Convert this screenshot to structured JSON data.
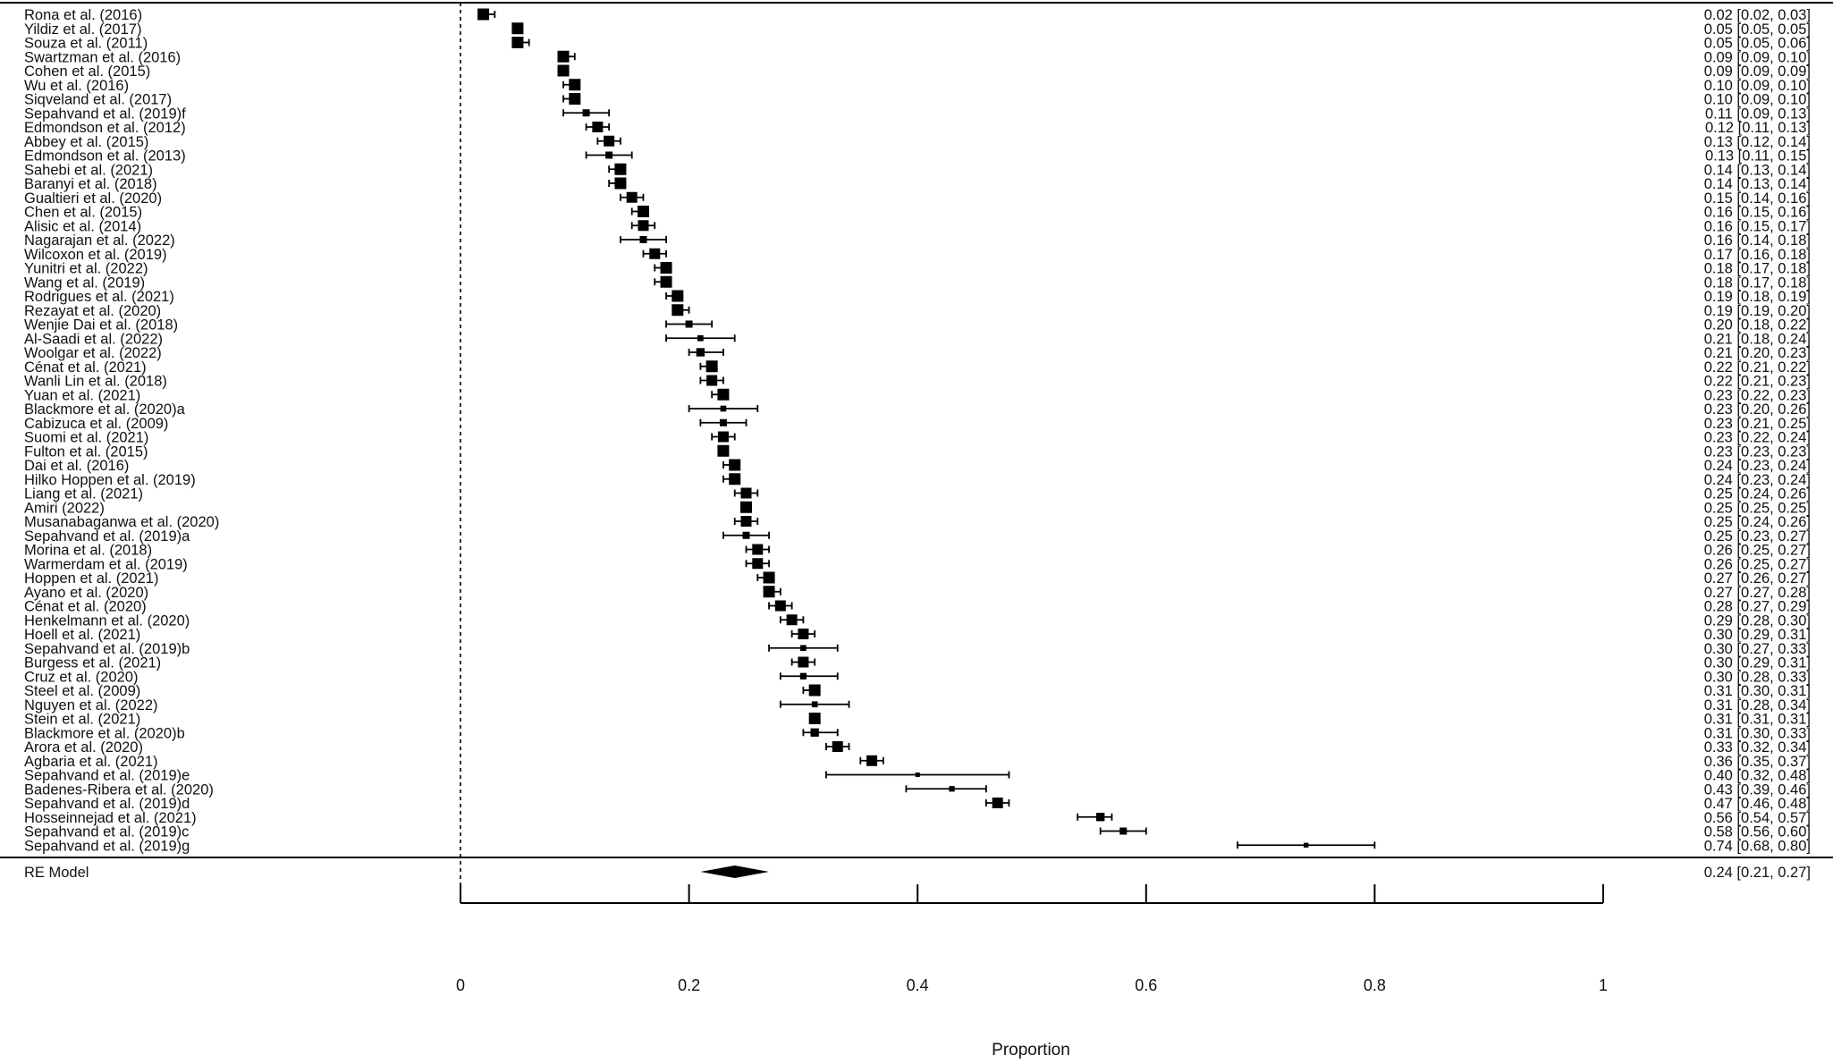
{
  "chart_data": {
    "type": "forest",
    "xlabel": "Proportion",
    "xlim": [
      0,
      1
    ],
    "xticks": [
      "0",
      "0.2",
      "0.4",
      "0.6",
      "0.8",
      "1"
    ],
    "reference_line": 0,
    "studies": [
      {
        "label": "Rona et al. (2016)",
        "est": 0.02,
        "lo": 0.02,
        "hi": 0.03,
        "ci_text": "0.02 [0.02, 0.03]"
      },
      {
        "label": "Yildiz et al. (2017)",
        "est": 0.05,
        "lo": 0.05,
        "hi": 0.05,
        "ci_text": "0.05 [0.05, 0.05]"
      },
      {
        "label": "Souza et al. (2011)",
        "est": 0.05,
        "lo": 0.05,
        "hi": 0.06,
        "ci_text": "0.05 [0.05, 0.06]"
      },
      {
        "label": "Swartzman et al. (2016)",
        "est": 0.09,
        "lo": 0.09,
        "hi": 0.1,
        "ci_text": "0.09 [0.09, 0.10]"
      },
      {
        "label": "Cohen et al. (2015)",
        "est": 0.09,
        "lo": 0.09,
        "hi": 0.09,
        "ci_text": "0.09 [0.09, 0.09]"
      },
      {
        "label": "Wu et al. (2016)",
        "est": 0.1,
        "lo": 0.09,
        "hi": 0.1,
        "ci_text": "0.10 [0.09, 0.10]"
      },
      {
        "label": "Siqveland et al. (2017)",
        "est": 0.1,
        "lo": 0.09,
        "hi": 0.1,
        "ci_text": "0.10 [0.09, 0.10]"
      },
      {
        "label": "Sepahvand et al. (2019)f",
        "est": 0.11,
        "lo": 0.09,
        "hi": 0.13,
        "ci_text": "0.11 [0.09, 0.13]"
      },
      {
        "label": "Edmondson et al. (2012)",
        "est": 0.12,
        "lo": 0.11,
        "hi": 0.13,
        "ci_text": "0.12 [0.11, 0.13]"
      },
      {
        "label": "Abbey et al. (2015)",
        "est": 0.13,
        "lo": 0.12,
        "hi": 0.14,
        "ci_text": "0.13 [0.12, 0.14]"
      },
      {
        "label": "Edmondson et al. (2013)",
        "est": 0.13,
        "lo": 0.11,
        "hi": 0.15,
        "ci_text": "0.13 [0.11, 0.15]"
      },
      {
        "label": "Sahebi et al. (2021)",
        "est": 0.14,
        "lo": 0.13,
        "hi": 0.14,
        "ci_text": "0.14 [0.13, 0.14]"
      },
      {
        "label": "Baranyi et al. (2018)",
        "est": 0.14,
        "lo": 0.13,
        "hi": 0.14,
        "ci_text": "0.14 [0.13, 0.14]"
      },
      {
        "label": "Gualtieri et al. (2020)",
        "est": 0.15,
        "lo": 0.14,
        "hi": 0.16,
        "ci_text": "0.15 [0.14, 0.16]"
      },
      {
        "label": "Chen et al. (2015)",
        "est": 0.16,
        "lo": 0.15,
        "hi": 0.16,
        "ci_text": "0.16 [0.15, 0.16]"
      },
      {
        "label": "Alisic et al. (2014)",
        "est": 0.16,
        "lo": 0.15,
        "hi": 0.17,
        "ci_text": "0.16 [0.15, 0.17]"
      },
      {
        "label": "Nagarajan et al. (2022)",
        "est": 0.16,
        "lo": 0.14,
        "hi": 0.18,
        "ci_text": "0.16 [0.14, 0.18]"
      },
      {
        "label": "Wilcoxon et al. (2019)",
        "est": 0.17,
        "lo": 0.16,
        "hi": 0.18,
        "ci_text": "0.17 [0.16, 0.18]"
      },
      {
        "label": "Yunitri et al. (2022)",
        "est": 0.18,
        "lo": 0.17,
        "hi": 0.18,
        "ci_text": "0.18 [0.17, 0.18]"
      },
      {
        "label": "Wang et al. (2019)",
        "est": 0.18,
        "lo": 0.17,
        "hi": 0.18,
        "ci_text": "0.18 [0.17, 0.18]"
      },
      {
        "label": "Rodrigues et al. (2021)",
        "est": 0.19,
        "lo": 0.18,
        "hi": 0.19,
        "ci_text": "0.19 [0.18, 0.19]"
      },
      {
        "label": "Rezayat et al. (2020)",
        "est": 0.19,
        "lo": 0.19,
        "hi": 0.2,
        "ci_text": "0.19 [0.19, 0.20]"
      },
      {
        "label": "Wenjie Dai et al. (2018)",
        "est": 0.2,
        "lo": 0.18,
        "hi": 0.22,
        "ci_text": "0.20 [0.18, 0.22]"
      },
      {
        "label": "Al-Saadi et al. (2022)",
        "est": 0.21,
        "lo": 0.18,
        "hi": 0.24,
        "ci_text": "0.21 [0.18, 0.24]"
      },
      {
        "label": "Woolgar et al. (2022)",
        "est": 0.21,
        "lo": 0.2,
        "hi": 0.23,
        "ci_text": "0.21 [0.20, 0.23]"
      },
      {
        "label": "Cénat et al. (2021)",
        "est": 0.22,
        "lo": 0.21,
        "hi": 0.22,
        "ci_text": "0.22 [0.21, 0.22]"
      },
      {
        "label": "Wanli Lin et al. (2018)",
        "est": 0.22,
        "lo": 0.21,
        "hi": 0.23,
        "ci_text": "0.22 [0.21, 0.23]"
      },
      {
        "label": "Yuan et al. (2021)",
        "est": 0.23,
        "lo": 0.22,
        "hi": 0.23,
        "ci_text": "0.23 [0.22, 0.23]"
      },
      {
        "label": "Blackmore et al. (2020)a",
        "est": 0.23,
        "lo": 0.2,
        "hi": 0.26,
        "ci_text": "0.23 [0.20, 0.26]"
      },
      {
        "label": "Cabizuca et al. (2009)",
        "est": 0.23,
        "lo": 0.21,
        "hi": 0.25,
        "ci_text": "0.23 [0.21, 0.25]"
      },
      {
        "label": "Suomi et al. (2021)",
        "est": 0.23,
        "lo": 0.22,
        "hi": 0.24,
        "ci_text": "0.23 [0.22, 0.24]"
      },
      {
        "label": "Fulton et al. (2015)",
        "est": 0.23,
        "lo": 0.23,
        "hi": 0.23,
        "ci_text": "0.23 [0.23, 0.23]"
      },
      {
        "label": "Dai et al. (2016)",
        "est": 0.24,
        "lo": 0.23,
        "hi": 0.24,
        "ci_text": "0.24 [0.23, 0.24]"
      },
      {
        "label": "Hilko Hoppen et al. (2019)",
        "est": 0.24,
        "lo": 0.23,
        "hi": 0.24,
        "ci_text": "0.24 [0.23, 0.24]"
      },
      {
        "label": "Liang et al. (2021)",
        "est": 0.25,
        "lo": 0.24,
        "hi": 0.26,
        "ci_text": "0.25 [0.24, 0.26]"
      },
      {
        "label": "Amiri (2022)",
        "est": 0.25,
        "lo": 0.25,
        "hi": 0.25,
        "ci_text": "0.25 [0.25, 0.25]"
      },
      {
        "label": "Musanabaganwa et al. (2020)",
        "est": 0.25,
        "lo": 0.24,
        "hi": 0.26,
        "ci_text": "0.25 [0.24, 0.26]"
      },
      {
        "label": "Sepahvand et al. (2019)a",
        "est": 0.25,
        "lo": 0.23,
        "hi": 0.27,
        "ci_text": "0.25 [0.23, 0.27]"
      },
      {
        "label": "Morina et al. (2018)",
        "est": 0.26,
        "lo": 0.25,
        "hi": 0.27,
        "ci_text": "0.26 [0.25, 0.27]"
      },
      {
        "label": "Warmerdam et al. (2019)",
        "est": 0.26,
        "lo": 0.25,
        "hi": 0.27,
        "ci_text": "0.26 [0.25, 0.27]"
      },
      {
        "label": "Hoppen et al. (2021)",
        "est": 0.27,
        "lo": 0.26,
        "hi": 0.27,
        "ci_text": "0.27 [0.26, 0.27]"
      },
      {
        "label": "Ayano et al. (2020)",
        "est": 0.27,
        "lo": 0.27,
        "hi": 0.28,
        "ci_text": "0.27 [0.27, 0.28]"
      },
      {
        "label": "Cénat et al. (2020)",
        "est": 0.28,
        "lo": 0.27,
        "hi": 0.29,
        "ci_text": "0.28 [0.27, 0.29]"
      },
      {
        "label": "Henkelmann et al. (2020)",
        "est": 0.29,
        "lo": 0.28,
        "hi": 0.3,
        "ci_text": "0.29 [0.28, 0.30]"
      },
      {
        "label": "Hoell et al. (2021)",
        "est": 0.3,
        "lo": 0.29,
        "hi": 0.31,
        "ci_text": "0.30 [0.29, 0.31]"
      },
      {
        "label": "Sepahvand et al. (2019)b",
        "est": 0.3,
        "lo": 0.27,
        "hi": 0.33,
        "ci_text": "0.30 [0.27, 0.33]"
      },
      {
        "label": "Burgess et al. (2021)",
        "est": 0.3,
        "lo": 0.29,
        "hi": 0.31,
        "ci_text": "0.30 [0.29, 0.31]"
      },
      {
        "label": "Cruz et al. (2020)",
        "est": 0.3,
        "lo": 0.28,
        "hi": 0.33,
        "ci_text": "0.30 [0.28, 0.33]"
      },
      {
        "label": "Steel et al. (2009)",
        "est": 0.31,
        "lo": 0.3,
        "hi": 0.31,
        "ci_text": "0.31 [0.30, 0.31]"
      },
      {
        "label": "Nguyen et al. (2022)",
        "est": 0.31,
        "lo": 0.28,
        "hi": 0.34,
        "ci_text": "0.31 [0.28, 0.34]"
      },
      {
        "label": "Stein et al. (2021)",
        "est": 0.31,
        "lo": 0.31,
        "hi": 0.31,
        "ci_text": "0.31 [0.31, 0.31]"
      },
      {
        "label": "Blackmore et al. (2020)b",
        "est": 0.31,
        "lo": 0.3,
        "hi": 0.33,
        "ci_text": "0.31 [0.30, 0.33]"
      },
      {
        "label": "Arora et al. (2020)",
        "est": 0.33,
        "lo": 0.32,
        "hi": 0.34,
        "ci_text": "0.33 [0.32, 0.34]"
      },
      {
        "label": "Agbaria et al. (2021)",
        "est": 0.36,
        "lo": 0.35,
        "hi": 0.37,
        "ci_text": "0.36 [0.35, 0.37]"
      },
      {
        "label": "Sepahvand et al. (2019)e",
        "est": 0.4,
        "lo": 0.32,
        "hi": 0.48,
        "ci_text": "0.40 [0.32, 0.48]"
      },
      {
        "label": "Badenes-Ribera et al. (2020)",
        "est": 0.43,
        "lo": 0.39,
        "hi": 0.46,
        "ci_text": "0.43 [0.39, 0.46]"
      },
      {
        "label": "Sepahvand et al. (2019)d",
        "est": 0.47,
        "lo": 0.46,
        "hi": 0.48,
        "ci_text": "0.47 [0.46, 0.48]"
      },
      {
        "label": "Hosseinnejad et al. (2021)",
        "est": 0.56,
        "lo": 0.54,
        "hi": 0.57,
        "ci_text": "0.56 [0.54, 0.57]"
      },
      {
        "label": "Sepahvand et al. (2019)c",
        "est": 0.58,
        "lo": 0.56,
        "hi": 0.6,
        "ci_text": "0.58 [0.56, 0.60]"
      },
      {
        "label": "Sepahvand et al. (2019)g",
        "est": 0.74,
        "lo": 0.68,
        "hi": 0.8,
        "ci_text": "0.74 [0.68, 0.80]"
      }
    ],
    "summary": {
      "label": "RE Model",
      "est": 0.24,
      "lo": 0.21,
      "hi": 0.27,
      "ci_text": "0.24 [0.21, 0.27]"
    }
  }
}
